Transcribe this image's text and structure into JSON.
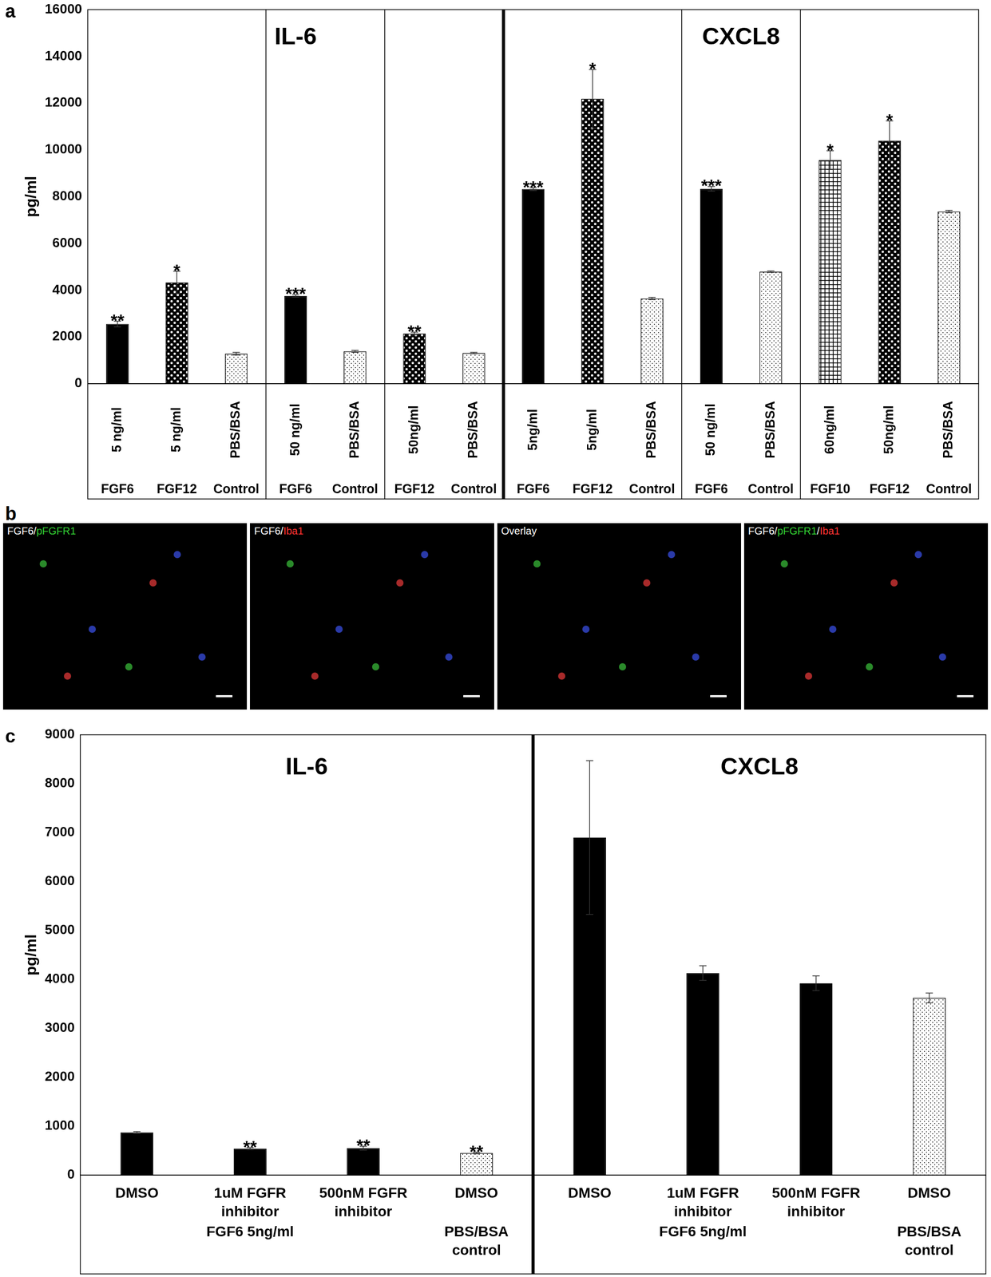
{
  "chart_data": [
    {
      "panel": "a",
      "type": "bar",
      "ylabel": "pg/ml",
      "ylim": [
        0,
        16000
      ],
      "yticks": [
        0,
        2000,
        4000,
        6000,
        8000,
        10000,
        12000,
        14000,
        16000
      ],
      "grid": false,
      "categories": [
        "5 ng/ml",
        "5 ng/ml",
        "PBS/BSA",
        "50 ng/ml",
        "PBS/BSA",
        "50ng/ml",
        "PBS/BSA",
        "5ng/ml",
        "5ng/ml",
        "PBS/BSA",
        "50 ng/ml",
        "PBS/BSA",
        "60ng/ml",
        "50ng/ml",
        "PBS/BSA"
      ],
      "category_groups": [
        {
          "label": "FGF6",
          "size": 1
        },
        {
          "label": "FGF12",
          "size": 1
        },
        {
          "label": "Control",
          "size": 1
        },
        {
          "label": "FGF6",
          "size": 1
        },
        {
          "label": "Control",
          "size": 1
        },
        {
          "label": "FGF12",
          "size": 1
        },
        {
          "label": "Control",
          "size": 1
        },
        {
          "label": "FGF6",
          "size": 1
        },
        {
          "label": "FGF12",
          "size": 1
        },
        {
          "label": "Control",
          "size": 1
        },
        {
          "label": "FGF6",
          "size": 1
        },
        {
          "label": "Control",
          "size": 1
        },
        {
          "label": "FGF10",
          "size": 1
        },
        {
          "label": "FGF12",
          "size": 1
        },
        {
          "label": "Control",
          "size": 1
        }
      ],
      "values": [
        2550,
        4330,
        1280,
        3750,
        1380,
        2140,
        1310,
        8320,
        12180,
        3640,
        8330,
        4790,
        9560,
        10390,
        7360
      ],
      "errors": [
        120,
        480,
        60,
        50,
        40,
        60,
        30,
        60,
        1250,
        50,
        100,
        30,
        400,
        850,
        50
      ],
      "significance": [
        "**",
        "*",
        null,
        "***",
        null,
        "**",
        null,
        "***",
        "*",
        null,
        "***",
        null,
        "*",
        "*",
        null
      ],
      "colors": [
        "#000000",
        "#404040",
        "#ffffff",
        "#000000",
        "#ffffff",
        "#404040",
        "#ffffff",
        "#000000",
        "#404040",
        "#ffffff",
        "#000000",
        "#ffffff",
        "#808080",
        "#404040",
        "#ffffff"
      ],
      "groups": [
        {
          "title": "IL-6",
          "subgroups": [
            3,
            2,
            2
          ]
        },
        {
          "title": "CXCL8",
          "subgroups": [
            3,
            2,
            3
          ]
        }
      ]
    },
    {
      "panel": "c",
      "type": "bar",
      "ylabel": "pg/ml",
      "ylim": [
        0,
        9000
      ],
      "yticks": [
        0,
        1000,
        2000,
        3000,
        4000,
        5000,
        6000,
        7000,
        8000,
        9000
      ],
      "grid": false,
      "categories": [
        "DMSO",
        "1uM FGFR inhibitor",
        "500nM FGFR inhibitor",
        "DMSO",
        "DMSO",
        "1uM FGFR inhibitor",
        "500nM FGFR inhibitor",
        "DMSO"
      ],
      "category_groups": [
        {
          "label": "FGF6 5ng/ml",
          "size": 3
        },
        {
          "label": "PBS/BSA control",
          "size": 1
        },
        {
          "label": "FGF6 5ng/ml",
          "size": 3
        },
        {
          "label": "PBS/BSA control",
          "size": 1
        }
      ],
      "values": [
        870,
        540,
        550,
        450,
        6900,
        4130,
        3920,
        3620
      ],
      "errors": [
        20,
        20,
        40,
        15,
        1570,
        150,
        150,
        100
      ],
      "significance": [
        null,
        "**",
        "**",
        "**",
        null,
        null,
        null,
        null
      ],
      "colors": [
        "#000000",
        "#000000",
        "#000000",
        "#ffffff",
        "#000000",
        "#000000",
        "#000000",
        "#ffffff"
      ],
      "groups": [
        {
          "title": "IL-6",
          "subgroups": [
            4
          ]
        },
        {
          "title": "CXCL8",
          "subgroups": [
            4
          ]
        }
      ]
    }
  ],
  "panel_b": {
    "panel": "b",
    "images": [
      {
        "label": [
          {
            "text": "FGF6/",
            "color": "#ffffff"
          },
          {
            "text": "pFGFR1",
            "color": "#33cc33"
          }
        ]
      },
      {
        "label": [
          {
            "text": "FGF6/",
            "color": "#ffffff"
          },
          {
            "text": "Iba1",
            "color": "#ff3333"
          }
        ]
      },
      {
        "label": [
          {
            "text": "Overlay",
            "color": "#ffffff"
          }
        ]
      },
      {
        "label": [
          {
            "text": "FGF6/",
            "color": "#ffffff"
          },
          {
            "text": "pFGFR1",
            "color": "#33cc33"
          },
          {
            "text": "/",
            "color": "#ffffff"
          },
          {
            "text": "Iba1",
            "color": "#ff3333"
          }
        ]
      }
    ]
  }
}
